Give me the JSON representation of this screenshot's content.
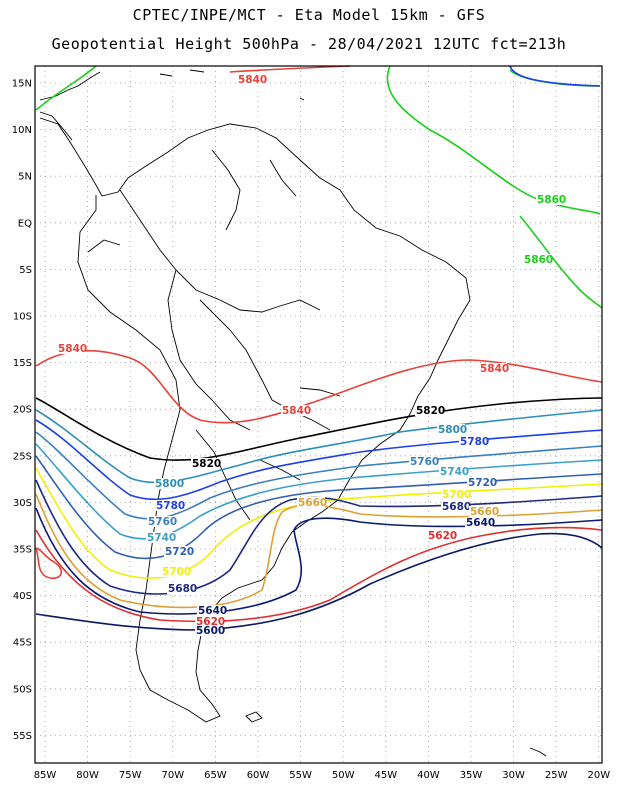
{
  "header": {
    "title_line1": "CPTEC/INPE/MCT -  Eta Model 15km - GFS",
    "title_line2": "Geopotential Height 500hPa - 28/04/2021 12UTC fct=213h"
  },
  "axes": {
    "lat_labels": [
      "15N",
      "10N",
      "5N",
      "EQ",
      "5S",
      "10S",
      "15S",
      "20S",
      "25S",
      "30S",
      "35S",
      "40S",
      "45S",
      "50S",
      "55S"
    ],
    "lon_labels": [
      "85W",
      "80W",
      "75W",
      "70W",
      "65W",
      "60W",
      "55W",
      "50W",
      "45W",
      "40W",
      "35W",
      "30W",
      "25W",
      "20W"
    ],
    "grid": "dotted"
  },
  "colors": {
    "c5840": "#e8423a",
    "c5820": "#000000",
    "c5800": "#2b8fb8",
    "c5780": "#1d3fe8",
    "c5760": "#3a7fc0",
    "c5740": "#3aa0c8",
    "c5720": "#2f5fb0",
    "c5700": "#f0f000",
    "c5680": "#1e2a80",
    "c5660": "#e0a030",
    "c5640": "#0a1a70",
    "c5620": "#e03030",
    "c5600": "#0a1a60",
    "c5860": "#18d018",
    "coast": "#000000"
  },
  "contour_labels": [
    {
      "text": "5840",
      "color": "c5840"
    },
    {
      "text": "5840",
      "color": "c5840"
    },
    {
      "text": "5840",
      "color": "c5840"
    },
    {
      "text": "5840",
      "color": "c5840"
    },
    {
      "text": "5860",
      "color": "c5860"
    },
    {
      "text": "5860",
      "color": "c5860"
    },
    {
      "text": "5820",
      "color": "c5820"
    },
    {
      "text": "5820",
      "color": "c5820"
    },
    {
      "text": "5800",
      "color": "c5800"
    },
    {
      "text": "5800",
      "color": "c5800"
    },
    {
      "text": "5780",
      "color": "c5780"
    },
    {
      "text": "5780",
      "color": "c5780"
    },
    {
      "text": "5760",
      "color": "c5760"
    },
    {
      "text": "5760",
      "color": "c5760"
    },
    {
      "text": "5740",
      "color": "c5740"
    },
    {
      "text": "5740",
      "color": "c5740"
    },
    {
      "text": "5720",
      "color": "c5720"
    },
    {
      "text": "5720",
      "color": "c5720"
    },
    {
      "text": "5700",
      "color": "c5700"
    },
    {
      "text": "5700",
      "color": "c5700"
    },
    {
      "text": "5680",
      "color": "c5680"
    },
    {
      "text": "5680",
      "color": "c5680"
    },
    {
      "text": "5660",
      "color": "c5660"
    },
    {
      "text": "5660",
      "color": "c5660"
    },
    {
      "text": "5640",
      "color": "c5640"
    },
    {
      "text": "5640",
      "color": "c5640"
    },
    {
      "text": "5620",
      "color": "c5620"
    },
    {
      "text": "5620",
      "color": "c5620"
    },
    {
      "text": "5600",
      "color": "c5600"
    }
  ]
}
